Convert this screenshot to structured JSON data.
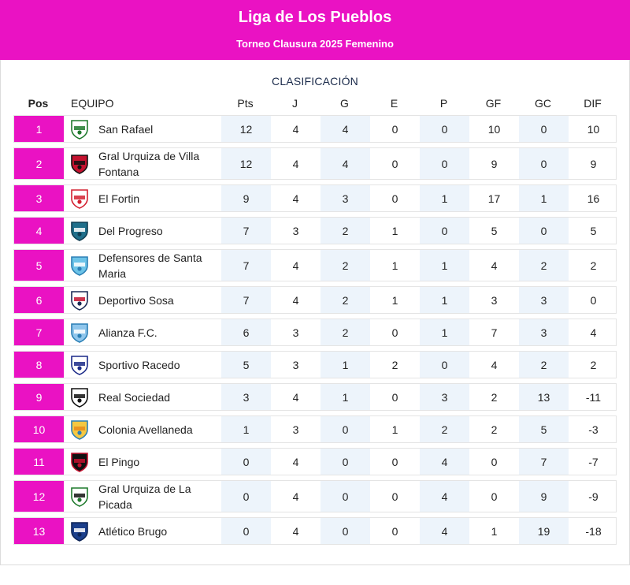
{
  "header": {
    "title": "Liga de Los Pueblos",
    "subtitle": "Torneo Clausura 2025 Femenino"
  },
  "table": {
    "caption": "CLASIFICACIÓN",
    "columns": {
      "pos": "Pos",
      "team": "EQUIPO",
      "pts": "Pts",
      "j": "J",
      "g": "G",
      "e": "E",
      "p": "P",
      "gf": "GF",
      "gc": "GC",
      "dif": "DIF"
    },
    "rows": [
      {
        "pos": "1",
        "team": "San Rafael",
        "pts": "12",
        "j": "4",
        "g": "4",
        "e": "0",
        "p": "0",
        "gf": "10",
        "gc": "0",
        "dif": "10",
        "crest": "san-rafael-crest-icon"
      },
      {
        "pos": "2",
        "team": "Gral Urquiza de Villa Fontana",
        "pts": "12",
        "j": "4",
        "g": "4",
        "e": "0",
        "p": "0",
        "gf": "9",
        "gc": "0",
        "dif": "9",
        "crest": "gral-urquiza-villa-fontana-crest-icon"
      },
      {
        "pos": "3",
        "team": "El Fortin",
        "pts": "9",
        "j": "4",
        "g": "3",
        "e": "0",
        "p": "1",
        "gf": "17",
        "gc": "1",
        "dif": "16",
        "crest": "el-fortin-crest-icon"
      },
      {
        "pos": "4",
        "team": "Del Progreso",
        "pts": "7",
        "j": "3",
        "g": "2",
        "e": "1",
        "p": "0",
        "gf": "5",
        "gc": "0",
        "dif": "5",
        "crest": "del-progreso-crest-icon"
      },
      {
        "pos": "5",
        "team": "Defensores de Santa Maria",
        "pts": "7",
        "j": "4",
        "g": "2",
        "e": "1",
        "p": "1",
        "gf": "4",
        "gc": "2",
        "dif": "2",
        "crest": "defensores-santa-maria-crest-icon"
      },
      {
        "pos": "6",
        "team": "Deportivo Sosa",
        "pts": "7",
        "j": "4",
        "g": "2",
        "e": "1",
        "p": "1",
        "gf": "3",
        "gc": "3",
        "dif": "0",
        "crest": "deportivo-sosa-crest-icon"
      },
      {
        "pos": "7",
        "team": "Alianza F.C.",
        "pts": "6",
        "j": "3",
        "g": "2",
        "e": "0",
        "p": "1",
        "gf": "7",
        "gc": "3",
        "dif": "4",
        "crest": "alianza-fc-crest-icon"
      },
      {
        "pos": "8",
        "team": "Sportivo Racedo",
        "pts": "5",
        "j": "3",
        "g": "1",
        "e": "2",
        "p": "0",
        "gf": "4",
        "gc": "2",
        "dif": "2",
        "crest": "sportivo-racedo-crest-icon"
      },
      {
        "pos": "9",
        "team": "Real Sociedad",
        "pts": "3",
        "j": "4",
        "g": "1",
        "e": "0",
        "p": "3",
        "gf": "2",
        "gc": "13",
        "dif": "-11",
        "crest": "real-sociedad-crest-icon"
      },
      {
        "pos": "10",
        "team": "Colonia Avellaneda",
        "pts": "1",
        "j": "3",
        "g": "0",
        "e": "1",
        "p": "2",
        "gf": "2",
        "gc": "5",
        "dif": "-3",
        "crest": "colonia-avellaneda-crest-icon"
      },
      {
        "pos": "11",
        "team": "El Pingo",
        "pts": "0",
        "j": "4",
        "g": "0",
        "e": "0",
        "p": "4",
        "gf": "0",
        "gc": "7",
        "dif": "-7",
        "crest": "el-pingo-crest-icon"
      },
      {
        "pos": "12",
        "team": "Gral Urquiza de La Picada",
        "pts": "0",
        "j": "4",
        "g": "0",
        "e": "0",
        "p": "4",
        "gf": "0",
        "gc": "9",
        "dif": "-9",
        "crest": "gral-urquiza-la-picada-crest-icon"
      },
      {
        "pos": "13",
        "team": "Atlético Brugo",
        "pts": "0",
        "j": "4",
        "g": "0",
        "e": "0",
        "p": "4",
        "gf": "1",
        "gc": "19",
        "dif": "-18",
        "crest": "atletico-brugo-crest-icon"
      }
    ]
  },
  "colors": {
    "accent": "#ea12c3",
    "shade": "#edf4fb",
    "border": "#e4e4e4"
  }
}
